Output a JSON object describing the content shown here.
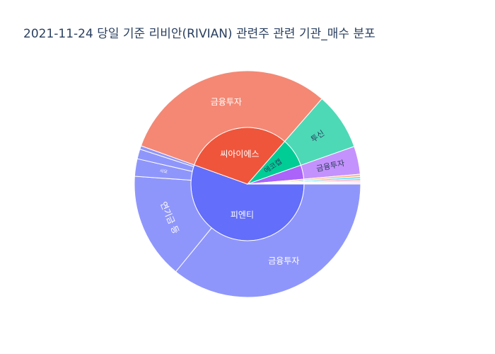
{
  "chart_data": {
    "type": "sunburst",
    "title": "2021-11-24 당일 기준 리비안(RIVIAN) 관련주 관련 기관_매수 분포",
    "hierarchy": [
      {
        "name": "피엔티",
        "color": "#636efa",
        "value": 55.6,
        "children": [
          {
            "name": "금융투자",
            "value": 36.0,
            "color": "#8f96fb"
          },
          {
            "name": "연기금 등",
            "value": 15.2,
            "color": "#8f96fb"
          },
          {
            "name": "사모",
            "value": 2.5,
            "color": "#8f96fb"
          },
          {
            "name": "",
            "value": 1.4,
            "color": "#8f96fb"
          },
          {
            "name": "",
            "value": 0.5,
            "color": "#8f96fb"
          }
        ]
      },
      {
        "name": "씨아이에스",
        "color": "#ef553b",
        "value": 31.0,
        "children": [
          {
            "name": "금융투자",
            "value": 31.0,
            "color": "#f48874"
          }
        ]
      },
      {
        "name": "에코캡",
        "color": "#00cc96",
        "value": 8.2,
        "children": [
          {
            "name": "투신",
            "value": 8.2,
            "color": "#4dd9b6"
          }
        ]
      },
      {
        "name": "",
        "color": "#ab63fa",
        "value": 4.0,
        "children": [
          {
            "name": "금융투자",
            "value": 4.0,
            "color": "#c492fc"
          }
        ]
      },
      {
        "name": "",
        "color": "#ffa15a",
        "value": 0.35,
        "children": [
          {
            "name": "",
            "value": 0.35,
            "color": "#ffbd8c"
          }
        ]
      },
      {
        "name": "",
        "color": "#19d3f3",
        "value": 0.3,
        "children": [
          {
            "name": "",
            "value": 0.3,
            "color": "#5ee0f7"
          }
        ]
      },
      {
        "name": "",
        "color": "#ff6692",
        "value": 0.25,
        "children": [
          {
            "name": "",
            "value": 0.25,
            "color": "#ff94b3"
          }
        ]
      },
      {
        "name": "",
        "color": "#b6e880",
        "value": 0.2,
        "children": [
          {
            "name": "",
            "value": 0.2,
            "color": "#ccefa6"
          }
        ]
      },
      {
        "name": "",
        "color": "#ff97ff",
        "value": 0.15,
        "children": [
          {
            "name": "",
            "value": 0.15,
            "color": "#ffb6ff"
          }
        ]
      },
      {
        "name": "",
        "color": "#fecb52",
        "value": 0.15,
        "children": [
          {
            "name": "",
            "value": 0.15,
            "color": "#fedb86"
          }
        ]
      }
    ]
  }
}
